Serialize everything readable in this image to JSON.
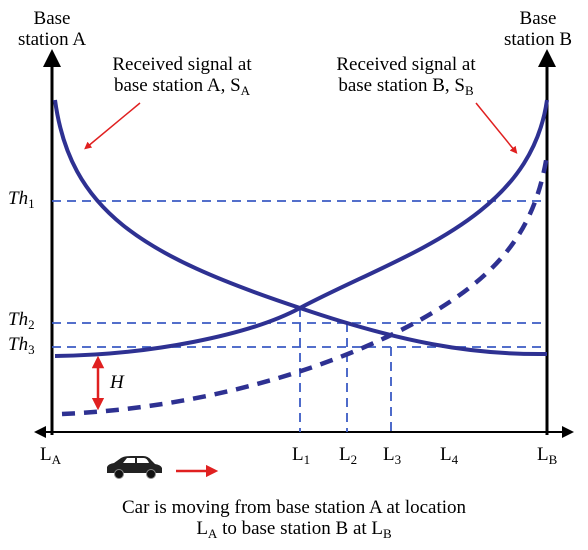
{
  "base_station_a": {
    "line1": "Base",
    "line2": "station A"
  },
  "base_station_b": {
    "line1": "Base",
    "line2": "station B"
  },
  "annotation_a": {
    "line1": "Received signal at",
    "line2": "base station A, S",
    "sub": "A"
  },
  "annotation_b": {
    "line1": "Received signal at",
    "line2": "base station B, S",
    "sub": "B"
  },
  "thresholds": [
    {
      "main": "Th",
      "sub": "1"
    },
    {
      "main": "Th",
      "sub": "2"
    },
    {
      "main": "Th",
      "sub": "3"
    }
  ],
  "hysteresis": "H",
  "locations": [
    {
      "main": "L",
      "sub": "A"
    },
    {
      "main": "L",
      "sub": "1"
    },
    {
      "main": "L",
      "sub": "2"
    },
    {
      "main": "L",
      "sub": "3"
    },
    {
      "main": "L",
      "sub": "4"
    },
    {
      "main": "L",
      "sub": "B"
    }
  ],
  "caption": {
    "line1": "Car is moving from base station A at location",
    "line2_a": "L",
    "line2_sub_a": "A",
    "line2_b": " to base station B at L",
    "line2_sub_b": "B"
  },
  "colors": {
    "curve": "#2e3192",
    "dashed": "#3b5bc4",
    "arrow_red": "#e02020",
    "axis": "#000000"
  },
  "icons": [
    "car-icon",
    "right-arrow-icon"
  ]
}
